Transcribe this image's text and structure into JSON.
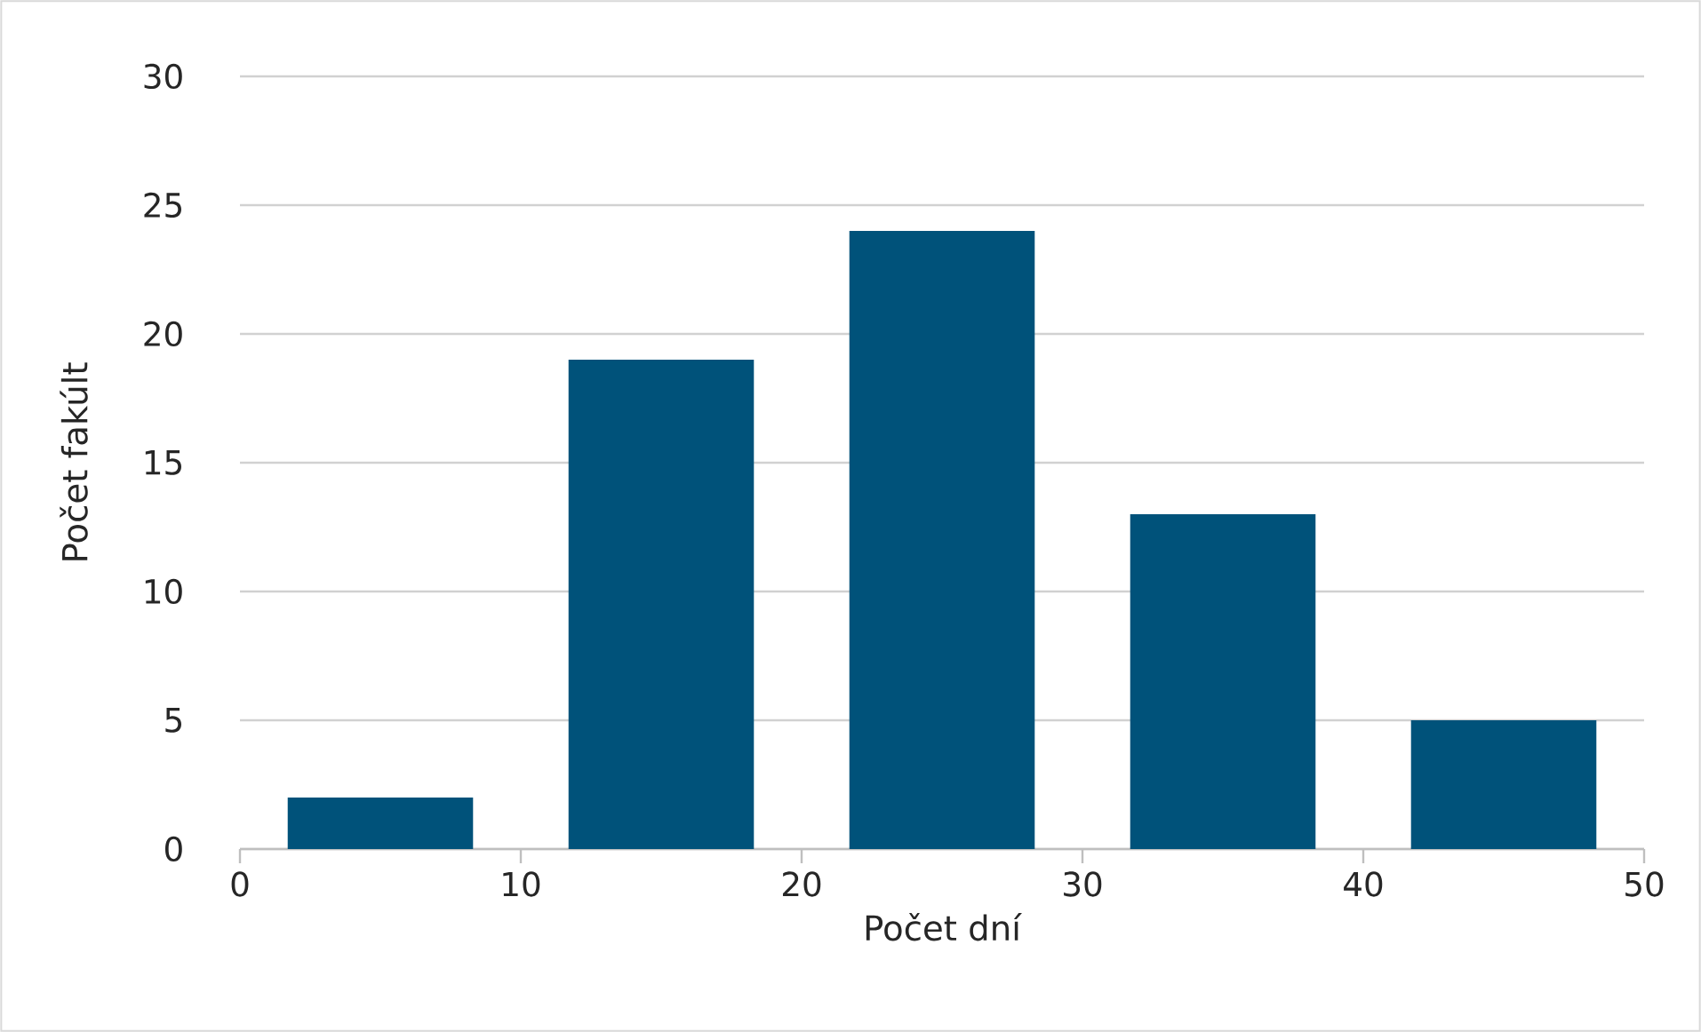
{
  "chart_data": {
    "type": "bar",
    "xlabel": "Počet dní",
    "ylabel": "Počet fakúlt",
    "x": [
      5,
      15,
      25,
      35,
      45
    ],
    "values": [
      2,
      19,
      24,
      13,
      5
    ],
    "color": "#00527a",
    "xlim": [
      0,
      50
    ],
    "xticks": [
      0,
      10,
      20,
      30,
      40,
      50
    ],
    "ylim": [
      0,
      30
    ],
    "yticks": [
      0,
      5,
      10,
      15,
      20,
      25,
      30
    ],
    "grid": "y"
  }
}
